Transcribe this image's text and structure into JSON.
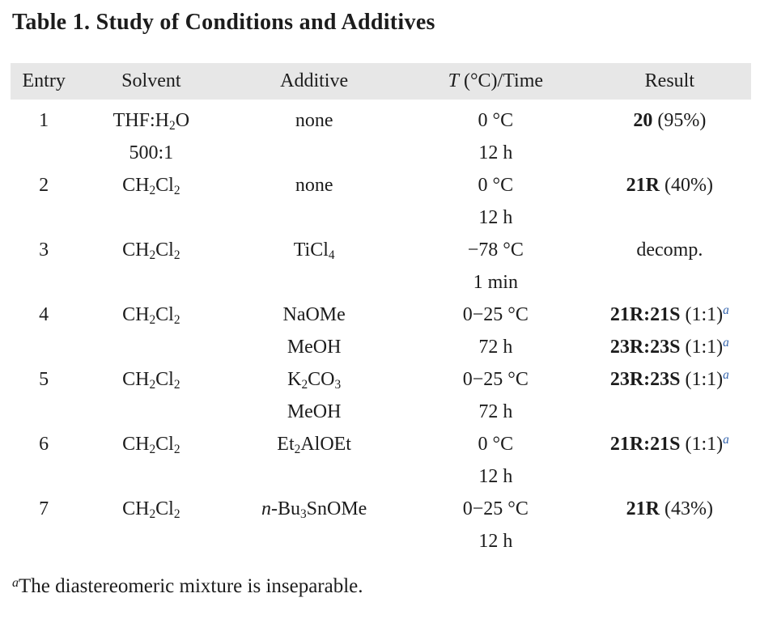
{
  "title": "Table 1. Study of Conditions and Additives",
  "colors": {
    "text": "#1c1c1c",
    "header_bg": "#e7e7e7",
    "accent_superscript": "#3565ad"
  },
  "footnote": {
    "marker": "a",
    "text": "The diastereomeric mixture is inseparable."
  },
  "table": {
    "columns": [
      {
        "key": "entry",
        "label": [
          {
            "t": "Entry"
          }
        ]
      },
      {
        "key": "solvent",
        "label": [
          {
            "t": "Solvent"
          }
        ]
      },
      {
        "key": "additive",
        "label": [
          {
            "t": "Additive"
          }
        ]
      },
      {
        "key": "t_time",
        "label": [
          {
            "t": "T",
            "i": true
          },
          {
            "t": " (°C)/Time"
          }
        ]
      },
      {
        "key": "result",
        "label": [
          {
            "t": "Result"
          }
        ]
      }
    ],
    "rows": [
      {
        "entry": "1",
        "solvent": [
          [
            {
              "t": "THF:H"
            },
            {
              "t": "2",
              "sub": true
            },
            {
              "t": "O"
            }
          ],
          [
            {
              "t": "500:1"
            }
          ]
        ],
        "additive": [
          [
            {
              "t": "none"
            }
          ]
        ],
        "t_time": [
          [
            {
              "t": "0 °C"
            }
          ],
          [
            {
              "t": "12 h"
            }
          ]
        ],
        "result": [
          [
            {
              "t": "20",
              "b": true
            },
            {
              "t": " (95%)"
            }
          ]
        ]
      },
      {
        "entry": "2",
        "solvent": [
          [
            {
              "t": "CH"
            },
            {
              "t": "2",
              "sub": true
            },
            {
              "t": "Cl"
            },
            {
              "t": "2",
              "sub": true
            }
          ]
        ],
        "additive": [
          [
            {
              "t": "none"
            }
          ]
        ],
        "t_time": [
          [
            {
              "t": "0 °C"
            }
          ],
          [
            {
              "t": "12 h"
            }
          ]
        ],
        "result": [
          [
            {
              "t": "21R",
              "b": true
            },
            {
              "t": " (40%)"
            }
          ]
        ]
      },
      {
        "entry": "3",
        "solvent": [
          [
            {
              "t": "CH"
            },
            {
              "t": "2",
              "sub": true
            },
            {
              "t": "Cl"
            },
            {
              "t": "2",
              "sub": true
            }
          ]
        ],
        "additive": [
          [
            {
              "t": "TiCl"
            },
            {
              "t": "4",
              "sub": true
            }
          ]
        ],
        "t_time": [
          [
            {
              "t": "−78 °C"
            }
          ],
          [
            {
              "t": "1 min"
            }
          ]
        ],
        "result": [
          [
            {
              "t": "decomp."
            }
          ]
        ]
      },
      {
        "entry": "4",
        "solvent": [
          [
            {
              "t": "CH"
            },
            {
              "t": "2",
              "sub": true
            },
            {
              "t": "Cl"
            },
            {
              "t": "2",
              "sub": true
            }
          ]
        ],
        "additive": [
          [
            {
              "t": "NaOMe"
            }
          ],
          [
            {
              "t": "MeOH"
            }
          ]
        ],
        "t_time": [
          [
            {
              "t": "0−25 °C"
            }
          ],
          [
            {
              "t": "72 h"
            }
          ]
        ],
        "result": [
          [
            {
              "t": "21R:21S",
              "b": true
            },
            {
              "t": " (1:1)"
            },
            {
              "t": "a",
              "sup": true,
              "i": true,
              "accent": true
            }
          ],
          [
            {
              "t": "23R:23S",
              "b": true
            },
            {
              "t": " (1:1)"
            },
            {
              "t": "a",
              "sup": true,
              "i": true,
              "accent": true
            }
          ]
        ]
      },
      {
        "entry": "5",
        "solvent": [
          [
            {
              "t": "CH"
            },
            {
              "t": "2",
              "sub": true
            },
            {
              "t": "Cl"
            },
            {
              "t": "2",
              "sub": true
            }
          ]
        ],
        "additive": [
          [
            {
              "t": "K"
            },
            {
              "t": "2",
              "sub": true
            },
            {
              "t": "CO"
            },
            {
              "t": "3",
              "sub": true
            }
          ],
          [
            {
              "t": "MeOH"
            }
          ]
        ],
        "t_time": [
          [
            {
              "t": "0−25 °C"
            }
          ],
          [
            {
              "t": "72 h"
            }
          ]
        ],
        "result": [
          [
            {
              "t": "23R:23S",
              "b": true
            },
            {
              "t": " (1:1)"
            },
            {
              "t": "a",
              "sup": true,
              "i": true,
              "accent": true
            }
          ]
        ]
      },
      {
        "entry": "6",
        "solvent": [
          [
            {
              "t": "CH"
            },
            {
              "t": "2",
              "sub": true
            },
            {
              "t": "Cl"
            },
            {
              "t": "2",
              "sub": true
            }
          ]
        ],
        "additive": [
          [
            {
              "t": "Et"
            },
            {
              "t": "2",
              "sub": true
            },
            {
              "t": "AlOEt"
            }
          ]
        ],
        "t_time": [
          [
            {
              "t": "0 °C"
            }
          ],
          [
            {
              "t": "12 h"
            }
          ]
        ],
        "result": [
          [
            {
              "t": "21R:21S",
              "b": true
            },
            {
              "t": " (1:1)"
            },
            {
              "t": "a",
              "sup": true,
              "i": true,
              "accent": true
            }
          ]
        ]
      },
      {
        "entry": "7",
        "solvent": [
          [
            {
              "t": "CH"
            },
            {
              "t": "2",
              "sub": true
            },
            {
              "t": "Cl"
            },
            {
              "t": "2",
              "sub": true
            }
          ]
        ],
        "additive": [
          [
            {
              "t": "n",
              "i": true
            },
            {
              "t": "-Bu"
            },
            {
              "t": "3",
              "sub": true
            },
            {
              "t": "SnOMe"
            }
          ]
        ],
        "t_time": [
          [
            {
              "t": "0−25 °C"
            }
          ],
          [
            {
              "t": "12 h"
            }
          ]
        ],
        "result": [
          [
            {
              "t": "21R",
              "b": true
            },
            {
              "t": " (43%)"
            }
          ]
        ]
      }
    ]
  }
}
